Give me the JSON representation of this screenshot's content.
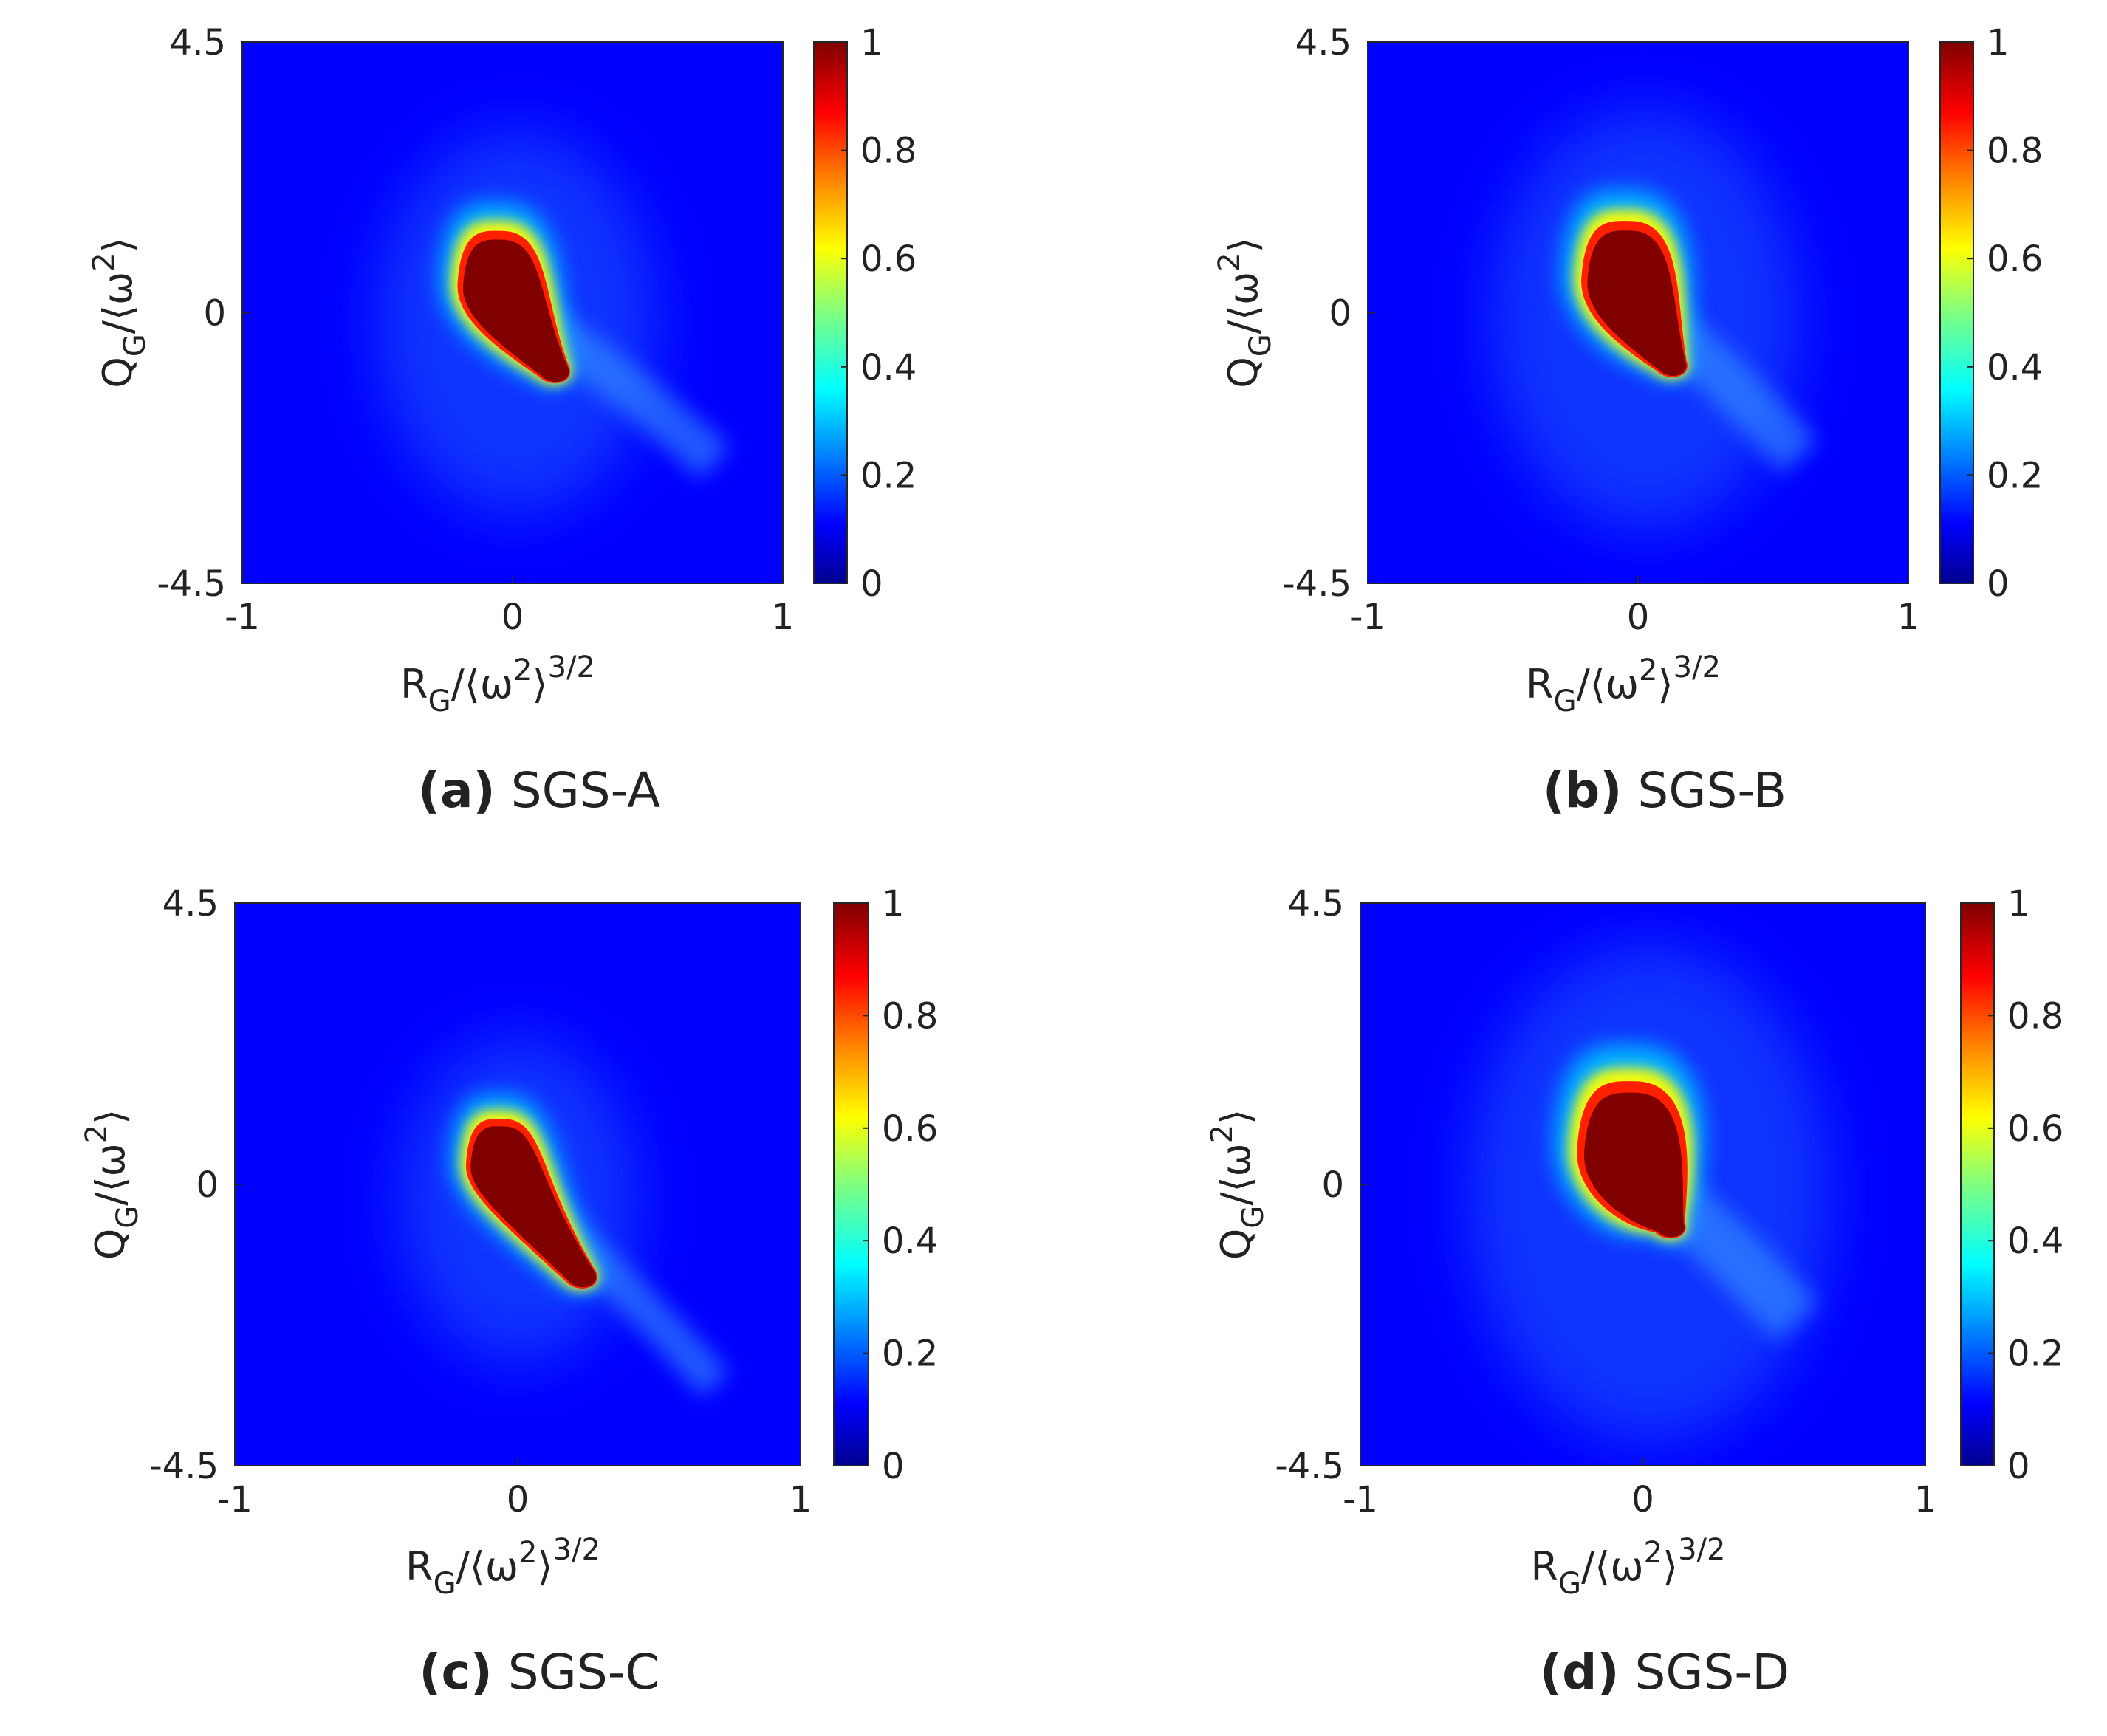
{
  "chart_data": [
    {
      "type": "heatmap",
      "panel": "a",
      "caption_letter": "(a)",
      "caption_text": "SGS-A",
      "xlabel_main": "R",
      "xlabel_sub": "G",
      "xlabel_rest": "/⟨ω",
      "xlabel_sq": "2",
      "xlabel_close": "⟩",
      "xlabel_pow": "3/2",
      "ylabel_main": "Q",
      "ylabel_sub": "G",
      "ylabel_rest": "/⟨ω",
      "ylabel_sq": "2",
      "ylabel_close": "⟩",
      "xlim": [
        -1,
        1
      ],
      "ylim": [
        -4.5,
        4.5
      ],
      "xticks": [
        "-1",
        "0",
        "1"
      ],
      "yticks": [
        "4.5",
        "0",
        "-4.5"
      ],
      "colorbar_ticks": [
        "1",
        "0.8",
        "0.6",
        "0.4",
        "0.2",
        "0"
      ],
      "clim": [
        0,
        1
      ],
      "blob": {
        "cx": -0.04,
        "cy": 0.2,
        "tip_x": 0.18,
        "tip_y": -1.0,
        "tail_x": 0.75,
        "tail_y": -2.5,
        "spread": 1.0
      }
    },
    {
      "type": "heatmap",
      "panel": "b",
      "caption_letter": "(b)",
      "caption_text": "SGS-B",
      "xlabel_main": "R",
      "xlabel_sub": "G",
      "xlabel_rest": "/⟨ω",
      "xlabel_sq": "2",
      "xlabel_close": "⟩",
      "xlabel_pow": "3/2",
      "ylabel_main": "Q",
      "ylabel_sub": "G",
      "ylabel_rest": "/⟨ω",
      "ylabel_sq": "2",
      "ylabel_close": "⟩",
      "xlim": [
        -1,
        1
      ],
      "ylim": [
        -4.5,
        4.5
      ],
      "xticks": [
        "-1",
        "0",
        "1"
      ],
      "yticks": [
        "4.5",
        "0",
        "-4.5"
      ],
      "colorbar_ticks": [
        "1",
        "0.8",
        "0.6",
        "0.4",
        "0.2",
        "0"
      ],
      "clim": [
        0,
        1
      ],
      "blob": {
        "cx": -0.03,
        "cy": 0.25,
        "tip_x": 0.15,
        "tip_y": -0.9,
        "tail_x": 0.6,
        "tail_y": -2.4,
        "spread": 1.1
      }
    },
    {
      "type": "heatmap",
      "panel": "c",
      "caption_letter": "(c)",
      "caption_text": "SGS-C",
      "xlabel_main": "R",
      "xlabel_sub": "G",
      "xlabel_rest": "/⟨ω",
      "xlabel_sq": "2",
      "xlabel_close": "⟩",
      "xlabel_pow": "3/2",
      "ylabel_main": "Q",
      "ylabel_sub": "G",
      "ylabel_rest": "/⟨ω",
      "ylabel_sq": "2",
      "ylabel_close": "⟩",
      "xlim": [
        -1,
        1
      ],
      "ylim": [
        -4.5,
        4.5
      ],
      "xticks": [
        "-1",
        "0",
        "1"
      ],
      "yticks": [
        "4.5",
        "0",
        "-4.5"
      ],
      "colorbar_ticks": [
        "1",
        "0.8",
        "0.6",
        "0.4",
        "0.2",
        "0"
      ],
      "clim": [
        0,
        1
      ],
      "blob": {
        "cx": -0.05,
        "cy": 0.1,
        "tip_x": 0.25,
        "tip_y": -1.5,
        "tail_x": 0.7,
        "tail_y": -3.2,
        "spread": 0.85
      }
    },
    {
      "type": "heatmap",
      "panel": "d",
      "caption_letter": "(d)",
      "caption_text": "SGS-D",
      "xlabel_main": "R",
      "xlabel_sub": "G",
      "xlabel_rest": "/⟨ω",
      "xlabel_sq": "2",
      "xlabel_close": "⟩",
      "xlabel_pow": "3/2",
      "ylabel_main": "Q",
      "ylabel_sub": "G",
      "ylabel_rest": "/⟨ω",
      "ylabel_sq": "2",
      "ylabel_close": "⟩",
      "xlim": [
        -1,
        1
      ],
      "ylim": [
        -4.5,
        4.5
      ],
      "xticks": [
        "-1",
        "0",
        "1"
      ],
      "yticks": [
        "4.5",
        "0",
        "-4.5"
      ],
      "colorbar_ticks": [
        "1",
        "0.8",
        "0.6",
        "0.4",
        "0.2",
        "0"
      ],
      "clim": [
        0,
        1
      ],
      "blob": {
        "cx": -0.03,
        "cy": 0.2,
        "tip_x": 0.12,
        "tip_y": -0.7,
        "tail_x": 0.55,
        "tail_y": -2.2,
        "spread": 1.3
      }
    }
  ],
  "colormap": {
    "name": "jet",
    "stops": [
      "#00008f",
      "#0000ff",
      "#0080ff",
      "#00ffff",
      "#80ff80",
      "#ffff00",
      "#ff8000",
      "#ff0000",
      "#800000"
    ]
  }
}
